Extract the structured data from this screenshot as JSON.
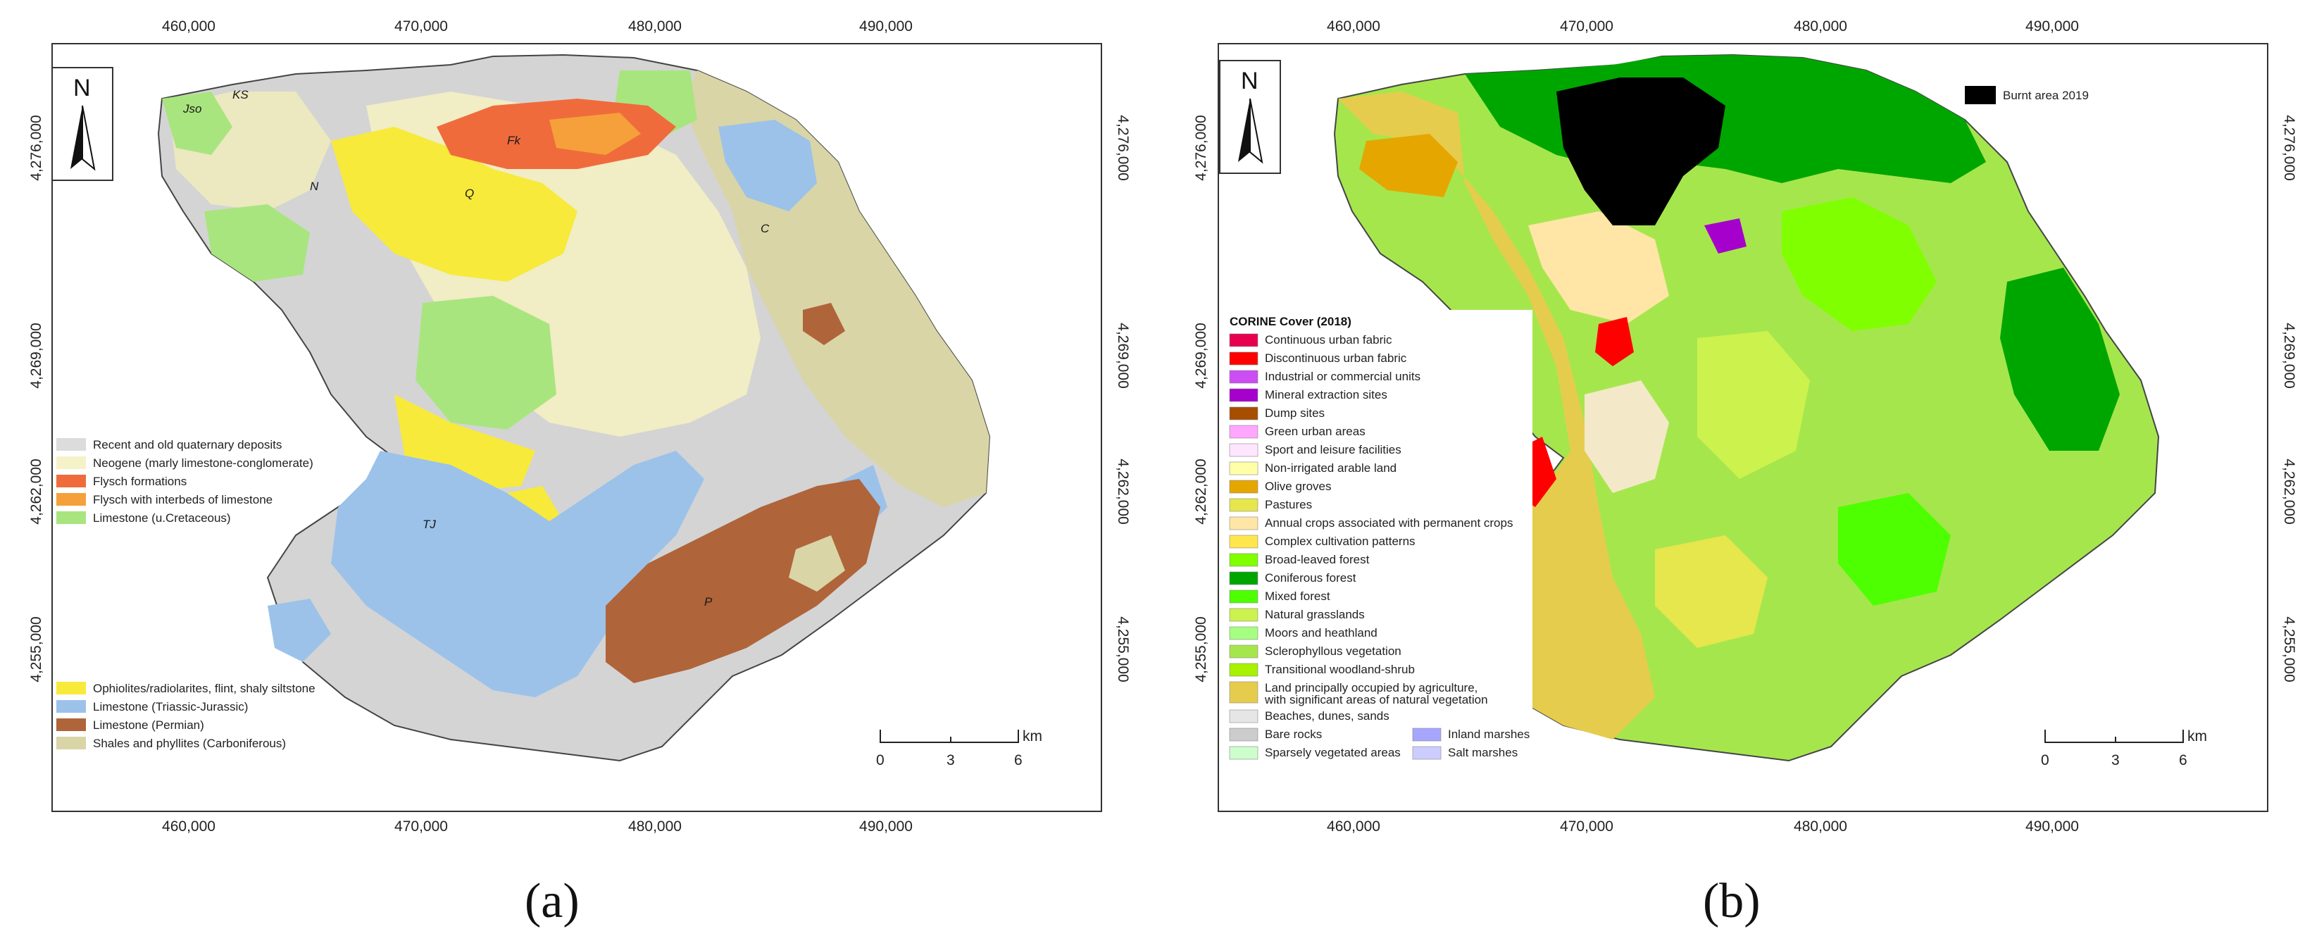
{
  "captions": {
    "a": "(a)",
    "b": "(b)"
  },
  "axis": {
    "x_ticks": [
      "460,000",
      "470,000",
      "480,000",
      "490,000"
    ],
    "y_ticks": [
      "4,276,000",
      "4,269,000",
      "4,262,000",
      "4,255,000"
    ]
  },
  "north_label": "N",
  "scalebar": {
    "labels": [
      "0",
      "3",
      "6"
    ],
    "unit": "km"
  },
  "panel_a": {
    "legend_top": [
      {
        "label": "Recent and old quaternary deposits",
        "color": "#dcdcdc"
      },
      {
        "label": "Neogene (marly limestone-conglomerate)",
        "color": "#f6f2c8"
      },
      {
        "label": "Flysch formations",
        "color": "#f06b3c"
      },
      {
        "label": "Flysch with interbeds of limestone",
        "color": "#f5a03a"
      },
      {
        "label": "Limestone (u.Cretaceous)",
        "color": "#a9e57f"
      }
    ],
    "legend_bottom": [
      {
        "label": "Ophiolites/radiolarites, flint, shaly siltstone",
        "color": "#f7ea3a"
      },
      {
        "label": "Limestone (Triassic-Jurassic)",
        "color": "#9cc2ea"
      },
      {
        "label": "Limestone (Permian)",
        "color": "#b0643a"
      },
      {
        "label": "Shales and phyllites (Carboniferous)",
        "color": "#d9d5a6"
      }
    ],
    "map_labels": [
      "Jso",
      "KS",
      "N",
      "Q",
      "TJ",
      "C",
      "P",
      "Fk"
    ]
  },
  "panel_b": {
    "burnt_label": "Burnt area 2019",
    "legend_title": "CORINE Cover (2018)",
    "legend": [
      {
        "label": "Continuous urban fabric",
        "color": "#e6004d"
      },
      {
        "label": "Discontinuous urban fabric",
        "color": "#ff0000"
      },
      {
        "label": "Industrial or commercial units",
        "color": "#cc4df2"
      },
      {
        "label": "Mineral extraction sites",
        "color": "#a600cc"
      },
      {
        "label": "Dump sites",
        "color": "#a64d00"
      },
      {
        "label": "Green urban areas",
        "color": "#ffa6ff"
      },
      {
        "label": "Sport and leisure facilities",
        "color": "#ffe6ff"
      },
      {
        "label": "Non-irrigated arable land",
        "color": "#ffffa8"
      },
      {
        "label": "Olive groves",
        "color": "#e6a600"
      },
      {
        "label": "Pastures",
        "color": "#e6e64d"
      },
      {
        "label": "Annual crops associated with permanent crops",
        "color": "#ffe6a6"
      },
      {
        "label": "Complex cultivation patterns",
        "color": "#ffe64d"
      },
      {
        "label": "Broad-leaved forest",
        "color": "#80ff00"
      },
      {
        "label": "Coniferous forest",
        "color": "#00a600"
      },
      {
        "label": "Mixed forest",
        "color": "#4dff00"
      },
      {
        "label": "Natural grasslands",
        "color": "#ccf24d"
      },
      {
        "label": "Moors and heathland",
        "color": "#a6ff80"
      },
      {
        "label": "Sclerophyllous vegetation",
        "color": "#a6e64d"
      },
      {
        "label": "Transitional woodland-shrub",
        "color": "#a6f200"
      },
      {
        "label": "Land principally occupied by agriculture,",
        "label2": "with significant areas of natural vegetation",
        "color": "#e6cc4d"
      },
      {
        "label": "Beaches, dunes, sands",
        "color": "#e6e6e6"
      },
      {
        "label": "Bare rocks",
        "color": "#cccccc"
      },
      {
        "label": "Sparsely vegetated areas",
        "color": "#ccffcc"
      }
    ],
    "legend_col2": [
      {
        "label": "Inland marshes",
        "color": "#a6a6ff"
      },
      {
        "label": "Salt marshes",
        "color": "#ccccff"
      }
    ]
  }
}
